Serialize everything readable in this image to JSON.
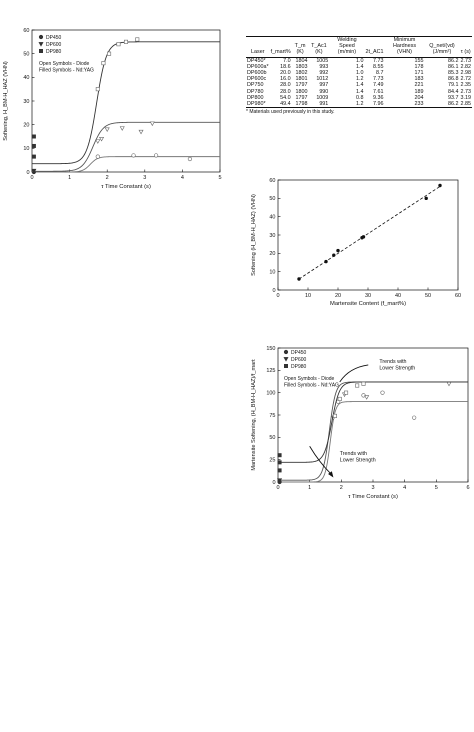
{
  "chart_data": [
    {
      "type": "scatter",
      "title": "",
      "xlabel": "τ Time Constant (s)",
      "ylabel": "Softening, H_BM-H_HAZ (VHN)",
      "xlim": [
        0,
        5
      ],
      "ylim": [
        0,
        60
      ],
      "xticks": [
        0,
        1,
        2,
        3,
        4,
        5
      ],
      "yticks": [
        0,
        10,
        20,
        30,
        40,
        50,
        60
      ],
      "grid": false,
      "legend": {
        "position": "top-left",
        "entries": [
          "DP450",
          "DP600",
          "DP980"
        ]
      },
      "notes": [
        "Open Symbols - Diode",
        "Filled Symbols - Nd:YAG"
      ],
      "series": [
        {
          "name": "DP450",
          "marker": "circle",
          "points": [
            [
              1.75,
              6.5
            ],
            [
              2.7,
              7
            ],
            [
              3.3,
              7
            ],
            [
              4.2,
              5.5
            ]
          ],
          "filled_points": [
            [
              0.05,
              0
            ]
          ],
          "curve": {
            "low": 0,
            "high": 6.5,
            "center": 1.55,
            "width": 0.1
          }
        },
        {
          "name": "DP600",
          "marker": "triangle-down",
          "points": [
            [
              1.75,
              13
            ],
            [
              1.85,
              14
            ],
            [
              2.0,
              18
            ],
            [
              2.4,
              18.5
            ],
            [
              2.9,
              17
            ],
            [
              3.2,
              20.5
            ]
          ],
          "filled_points": [
            [
              0.05,
              0.5
            ]
          ],
          "curve": {
            "low": 0.3,
            "high": 21,
            "center": 1.62,
            "width": 0.14
          }
        },
        {
          "name": "DP980",
          "marker": "square",
          "points": [
            [
              1.75,
              35
            ],
            [
              1.9,
              46
            ],
            [
              2.05,
              50
            ],
            [
              2.3,
              54
            ],
            [
              2.5,
              55
            ],
            [
              2.8,
              56
            ]
          ],
          "filled_points": [
            [
              0.05,
              15
            ],
            [
              0.05,
              11
            ],
            [
              0.05,
              6.5
            ]
          ],
          "curve": {
            "low": 3.5,
            "high": 55,
            "center": 1.72,
            "width": 0.13
          }
        }
      ]
    },
    {
      "type": "scatter",
      "title": "",
      "xlabel": "Martensite Content (f_mart%)",
      "ylabel": "Softening (H_BM-H_HAZ) (VHN)",
      "xlim": [
        0,
        60
      ],
      "ylim": [
        0,
        60
      ],
      "xticks": [
        0,
        10,
        20,
        30,
        40,
        50,
        60
      ],
      "yticks": [
        0,
        10,
        20,
        30,
        40,
        50,
        60
      ],
      "grid": false,
      "points": [
        [
          7,
          6
        ],
        [
          16,
          15.5
        ],
        [
          18.6,
          19
        ],
        [
          20,
          21.5
        ],
        [
          28,
          28.5
        ],
        [
          28.5,
          29
        ],
        [
          49.4,
          50
        ],
        [
          54,
          57
        ]
      ],
      "fit": {
        "style": "dashed",
        "from": [
          7,
          6
        ],
        "to": [
          54,
          56.5
        ]
      }
    },
    {
      "type": "scatter",
      "title": "",
      "xlabel": "τ Time Constant (s)",
      "ylabel": "Martensite Softening, (H_BM-H_HAZ)/f_mart",
      "xlim": [
        0,
        6
      ],
      "ylim": [
        0,
        150
      ],
      "xticks": [
        0,
        1,
        2,
        3,
        4,
        5,
        6
      ],
      "yticks": [
        0,
        25,
        50,
        75,
        100,
        125,
        150
      ],
      "grid": false,
      "legend": {
        "position": "top-left",
        "entries": [
          "DP450",
          "DP600",
          "DP980"
        ]
      },
      "notes": [
        "Open Symbols - Diode",
        "Filled Symbols - Nd:YAG"
      ],
      "annotations": [
        "Trends with Lower Strength",
        "Trends with Lower Strength"
      ],
      "series": [
        {
          "name": "DP450",
          "marker": "circle",
          "points": [
            [
              1.9,
              90
            ],
            [
              2.7,
              97
            ],
            [
              3.3,
              100
            ],
            [
              4.3,
              72
            ]
          ],
          "filled_points": [
            [
              0.05,
              0
            ]
          ],
          "curve": {
            "low": 0,
            "high": 90,
            "center": 1.65,
            "width": 0.08
          }
        },
        {
          "name": "DP600",
          "marker": "triangle-down",
          "points": [
            [
              1.75,
              72
            ],
            [
              2.1,
              98
            ],
            [
              2.8,
              95
            ],
            [
              5.4,
              110
            ]
          ],
          "filled_points": [
            [
              0.05,
              2
            ]
          ],
          "curve": {
            "low": 2,
            "high": 112,
            "center": 1.62,
            "width": 0.1
          }
        },
        {
          "name": "DP980",
          "marker": "square",
          "points": [
            [
              1.8,
              74
            ],
            [
              1.95,
              93
            ],
            [
              2.15,
              100
            ],
            [
              2.5,
              108
            ],
            [
              2.7,
              110
            ]
          ],
          "filled_points": [
            [
              0.05,
              30
            ],
            [
              0.05,
              22
            ],
            [
              0.05,
              13
            ]
          ],
          "curve": {
            "low": 22,
            "high": 112,
            "center": 1.7,
            "width": 0.12
          }
        }
      ]
    },
    {
      "type": "table",
      "columns": [
        "Laser",
        "f_mart%",
        "T_m (K)",
        "T_Ac1 (K)",
        "Welding Speed (m/min)",
        "2t_AC1",
        "Minimum Hardness (VHN)",
        "Q_net/(vd) (J/mm²)",
        "τ (s)"
      ],
      "rows": [
        [
          "DP450*",
          "7.0",
          "1804",
          "1005",
          "1.0",
          "7.73",
          "155",
          "86.2",
          "2.73"
        ],
        [
          "DP600a*",
          "18.6",
          "1803",
          "993",
          "1.4",
          "8.55",
          "178",
          "86.1",
          "2.82"
        ],
        [
          "DP600b",
          "20.0",
          "1802",
          "992",
          "1.0",
          "8.7",
          "171",
          "85.3",
          "2.98"
        ],
        [
          "DP600c",
          "16.0",
          "1801",
          "1012",
          "1.2",
          "7.73",
          "183",
          "86.8",
          "2.72"
        ],
        [
          "DP750",
          "28.0",
          "1797",
          "997",
          "1.4",
          "7.49",
          "221",
          "79.1",
          "2.35"
        ],
        [
          "DP780",
          "28.0",
          "1800",
          "990",
          "1.4",
          "7.61",
          "189",
          "84.4",
          "2.73"
        ],
        [
          "DP800",
          "54.0",
          "1797",
          "1009",
          "0.8",
          "9.36",
          "204",
          "93.7",
          "3.19"
        ],
        [
          "DP980*",
          "49.4",
          "1798",
          "991",
          "1.2",
          "7.96",
          "233",
          "86.2",
          "2.85"
        ]
      ],
      "footnote": "* Materials used previously in this study."
    }
  ]
}
